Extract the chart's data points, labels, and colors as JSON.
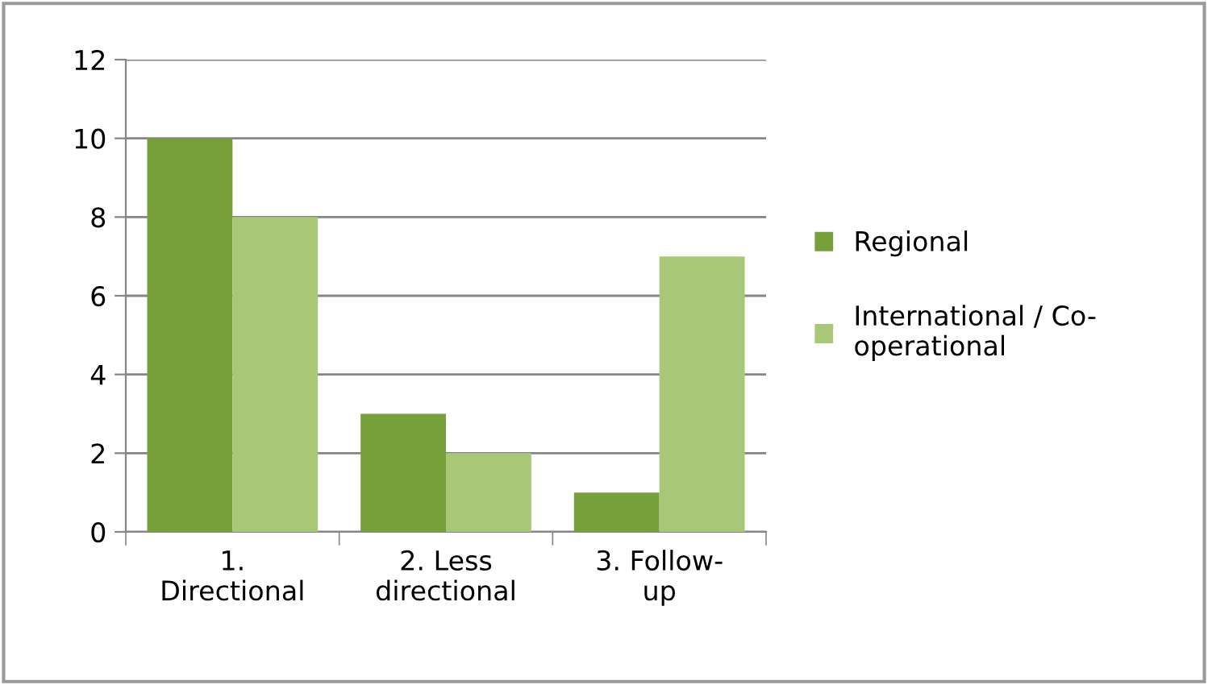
{
  "chart_data": {
    "type": "bar",
    "categories": [
      "1.\nDirectional",
      "2. Less\ndirectional",
      "3. Follow-\nup"
    ],
    "series": [
      {
        "name": "Regional",
        "color": "#76a13a",
        "values": [
          10,
          3,
          1
        ]
      },
      {
        "name": "International / Co-\noperational",
        "color": "#a8c878",
        "values": [
          8,
          2,
          7
        ]
      }
    ],
    "ylim": [
      0,
      12
    ],
    "yticks": [
      0,
      2,
      4,
      6,
      8,
      10,
      12
    ],
    "grid": "y",
    "legend": "right"
  }
}
